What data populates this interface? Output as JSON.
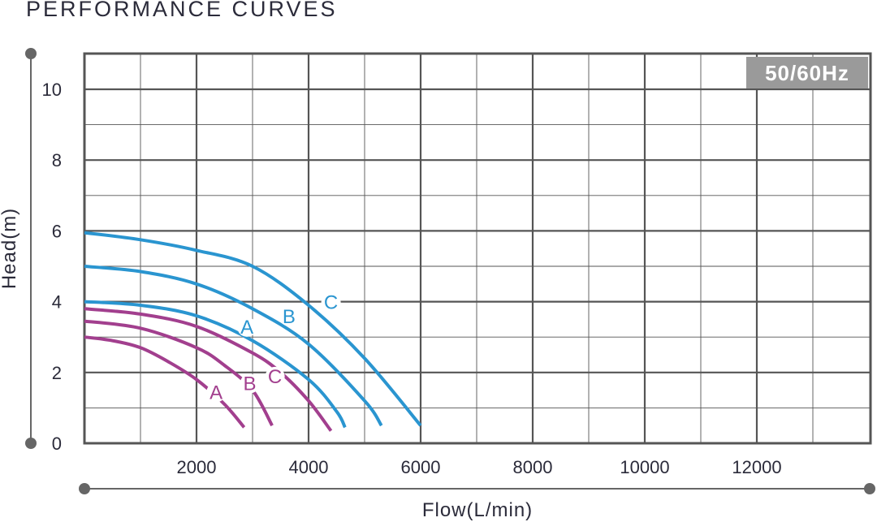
{
  "header": {
    "title": "PERFORMANCE CURVES"
  },
  "badge": {
    "text": "50/60Hz",
    "bg": "#9a9a9a"
  },
  "colors": {
    "blue": "#2a95d0",
    "purple": "#a23f8e",
    "grid": "#555555",
    "axis": "#666666"
  },
  "chart_data": {
    "type": "line",
    "title": "PERFORMANCE CURVES",
    "xlabel": "Flow(L/min)",
    "ylabel": "Head(m)",
    "xlim": [
      0,
      14000
    ],
    "ylim": [
      0,
      11
    ],
    "xticks": [
      2000,
      4000,
      6000,
      8000,
      10000,
      12000
    ],
    "yticks": [
      0,
      2,
      4,
      6,
      8,
      10
    ],
    "grid": true,
    "series": [
      {
        "name": "A",
        "color": "#2a95d0",
        "label_at": [
          2900,
          3.1
        ],
        "x": [
          0,
          1000,
          2000,
          3000,
          4000,
          4500,
          4650
        ],
        "y": [
          4.0,
          3.9,
          3.6,
          2.9,
          1.8,
          0.9,
          0.45
        ]
      },
      {
        "name": "B",
        "color": "#2a95d0",
        "label_at": [
          3650,
          3.4
        ],
        "x": [
          0,
          1000,
          2000,
          3000,
          4000,
          5000,
          5300
        ],
        "y": [
          5.0,
          4.85,
          4.5,
          3.8,
          2.8,
          1.2,
          0.5
        ]
      },
      {
        "name": "C",
        "color": "#2a95d0",
        "label_at": [
          4400,
          3.8
        ],
        "x": [
          0,
          1000,
          2000,
          3000,
          4000,
          5000,
          6000
        ],
        "y": [
          5.95,
          5.75,
          5.45,
          5.0,
          3.9,
          2.4,
          0.5
        ]
      },
      {
        "name": "A",
        "color": "#a23f8e",
        "label_at": [
          2350,
          1.25
        ],
        "x": [
          0,
          500,
          1000,
          1500,
          2000,
          2500,
          2850
        ],
        "y": [
          3.0,
          2.9,
          2.7,
          2.3,
          1.8,
          1.1,
          0.45
        ]
      },
      {
        "name": "B",
        "color": "#a23f8e",
        "label_at": [
          2950,
          1.5
        ],
        "x": [
          0,
          1000,
          2000,
          2500,
          3000,
          3350
        ],
        "y": [
          3.45,
          3.25,
          2.7,
          2.2,
          1.5,
          0.5
        ]
      },
      {
        "name": "C",
        "color": "#a23f8e",
        "label_at": [
          3400,
          1.7
        ],
        "x": [
          0,
          1000,
          2000,
          3000,
          3500,
          4000,
          4400
        ],
        "y": [
          3.8,
          3.65,
          3.3,
          2.55,
          2.0,
          1.2,
          0.35
        ]
      }
    ]
  }
}
